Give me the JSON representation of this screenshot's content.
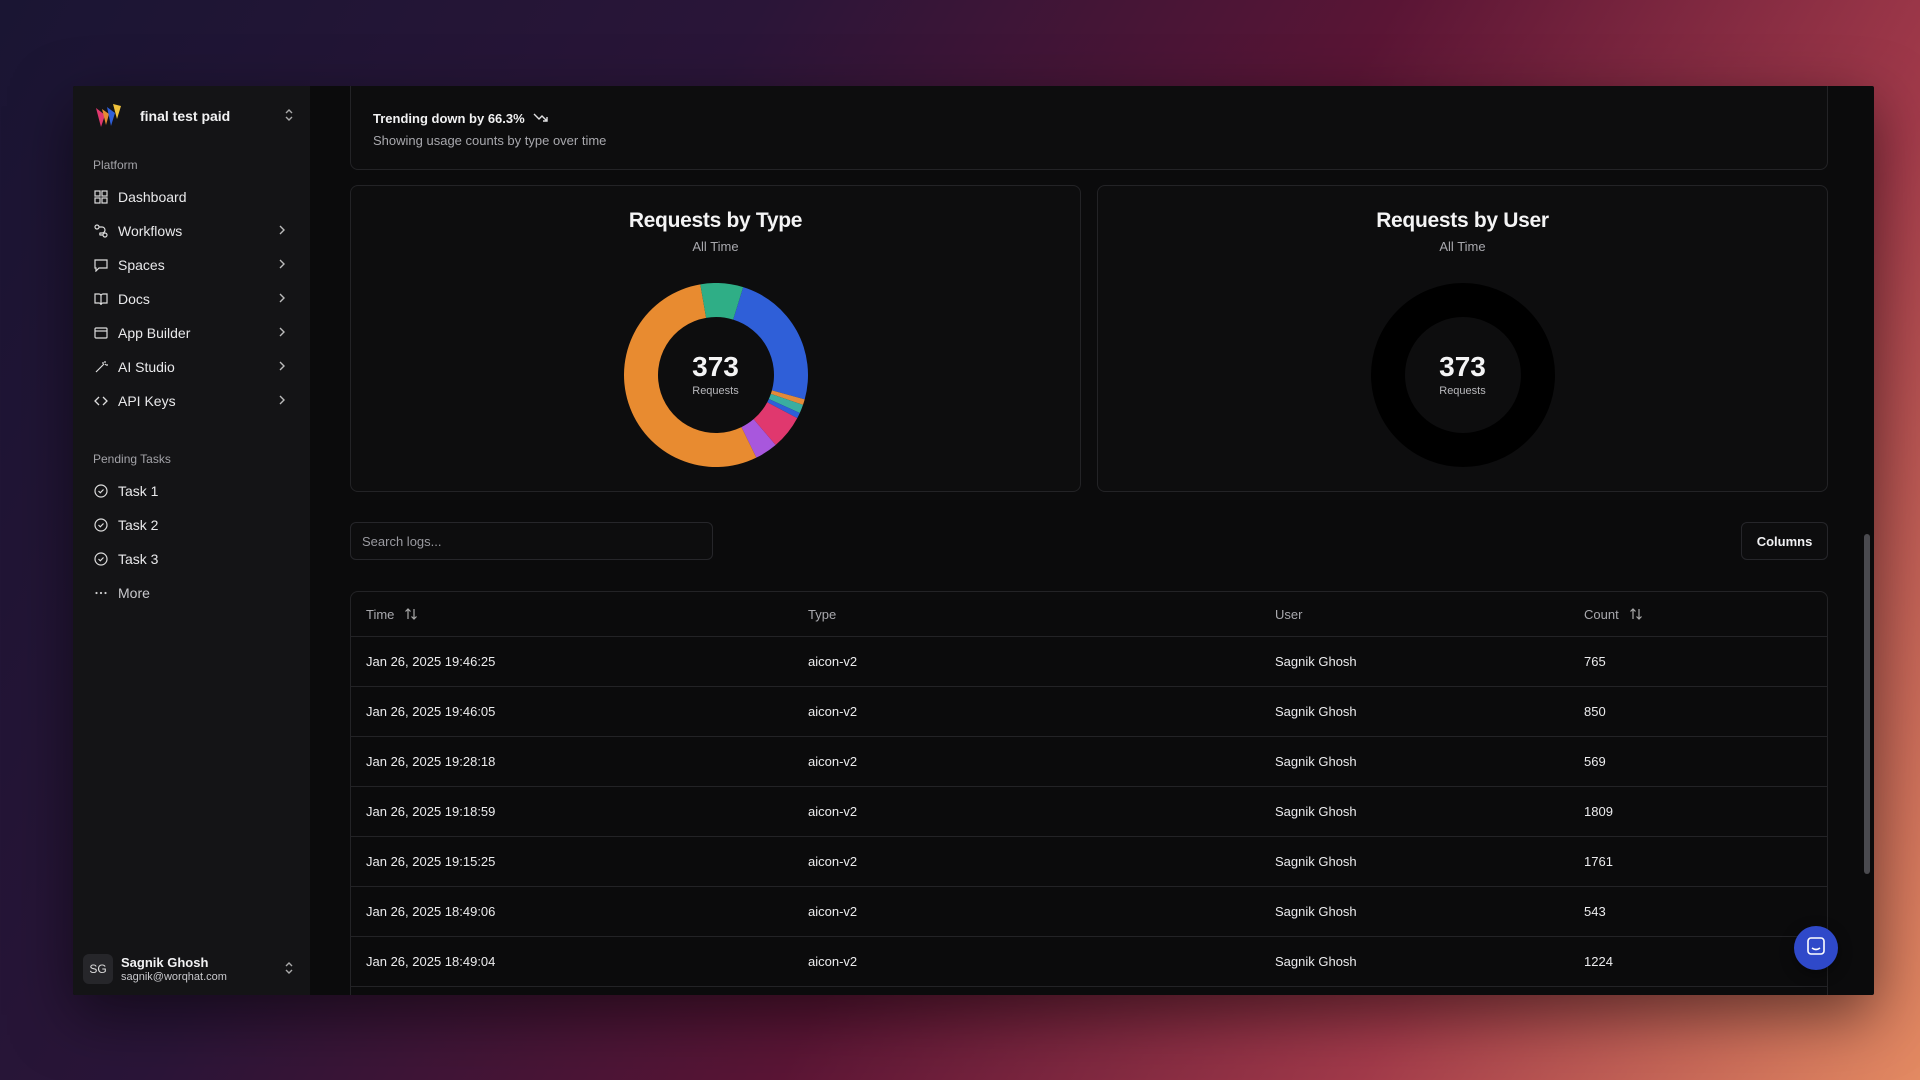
{
  "workspace": {
    "name": "final test paid"
  },
  "sidebar": {
    "platform_label": "Platform",
    "items": [
      {
        "label": "Dashboard",
        "icon": "dashboard-icon"
      },
      {
        "label": "Workflows",
        "icon": "workflow-icon"
      },
      {
        "label": "Spaces",
        "icon": "chat-icon"
      },
      {
        "label": "Docs",
        "icon": "book-icon"
      },
      {
        "label": "App Builder",
        "icon": "window-icon"
      },
      {
        "label": "AI Studio",
        "icon": "magic-wand-icon"
      },
      {
        "label": "API Keys",
        "icon": "code-icon"
      }
    ],
    "pending_label": "Pending Tasks",
    "tasks": [
      "Task 1",
      "Task 2",
      "Task 3"
    ],
    "more_label": "More"
  },
  "user": {
    "initials": "SG",
    "name": "Sagnik Ghosh",
    "email": "sagnik@worqhat.com"
  },
  "trend": {
    "headline": "Trending down by 66.3%",
    "subtitle": "Showing usage counts by type over time"
  },
  "charts": {
    "by_type": {
      "title": "Requests by Type",
      "subtitle": "All Time",
      "total": "373",
      "unit": "Requests"
    },
    "by_user": {
      "title": "Requests by User",
      "subtitle": "All Time",
      "total": "373",
      "unit": "Requests"
    }
  },
  "chart_data": [
    {
      "type": "pie",
      "title": "Requests by Type",
      "subtitle": "All Time",
      "center_value": 373,
      "center_label": "Requests",
      "slices": [
        {
          "value": 0.245,
          "color": "#2f5fd8"
        },
        {
          "value": 0.01,
          "color": "#e38a3a"
        },
        {
          "value": 0.015,
          "color": "#3aaea0"
        },
        {
          "value": 0.01,
          "color": "#2f5fd8"
        },
        {
          "value": 0.06,
          "color": "#e0386e"
        },
        {
          "value": 0.04,
          "color": "#a857dd"
        },
        {
          "value": 0.545,
          "color": "#e88b30"
        },
        {
          "value": 0.075,
          "color": "#2fae86"
        }
      ]
    },
    {
      "type": "pie",
      "title": "Requests by User",
      "subtitle": "All Time",
      "center_value": 373,
      "center_label": "Requests",
      "slices": [
        {
          "value": 1,
          "color": "#000000"
        }
      ]
    }
  ],
  "search": {
    "placeholder": "Search logs..."
  },
  "columns_button": "Columns",
  "table": {
    "headers": [
      "Time",
      "Type",
      "User",
      "Count"
    ],
    "rows": [
      [
        "Jan 26, 2025 19:46:25",
        "aicon-v2",
        "Sagnik Ghosh",
        "765"
      ],
      [
        "Jan 26, 2025 19:46:05",
        "aicon-v2",
        "Sagnik Ghosh",
        "850"
      ],
      [
        "Jan 26, 2025 19:28:18",
        "aicon-v2",
        "Sagnik Ghosh",
        "569"
      ],
      [
        "Jan 26, 2025 19:18:59",
        "aicon-v2",
        "Sagnik Ghosh",
        "1809"
      ],
      [
        "Jan 26, 2025 19:15:25",
        "aicon-v2",
        "Sagnik Ghosh",
        "1761"
      ],
      [
        "Jan 26, 2025 18:49:06",
        "aicon-v2",
        "Sagnik Ghosh",
        "543"
      ],
      [
        "Jan 26, 2025 18:49:04",
        "aicon-v2",
        "Sagnik Ghosh",
        "1224"
      ]
    ]
  }
}
